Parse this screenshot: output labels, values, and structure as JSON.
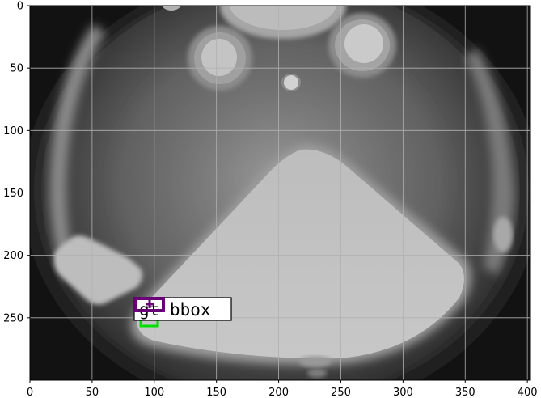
{
  "figure": {
    "x_ticks": [
      "0",
      "50",
      "100",
      "150",
      "200",
      "250",
      "300",
      "350",
      "400"
    ],
    "y_ticks": [
      "0",
      "50",
      "100",
      "150",
      "200",
      "250"
    ],
    "annotation_text": "gt bbox",
    "annotation_text_color": "#000000",
    "gt_box_color": "#00e000",
    "pred_box_color": "#6a0078",
    "grid_color": "#b0b0b0",
    "grid": true
  },
  "chart_data": {
    "type": "image",
    "x_axis_range": [
      0,
      400
    ],
    "y_axis_range": [
      300,
      0
    ],
    "boxes": [
      {
        "label": "gt bbox",
        "color": "#00e000",
        "x_range": [
          88,
          102
        ],
        "y_range": [
          250,
          257
        ]
      },
      {
        "color": "#6a0078",
        "x_range": [
          84,
          107
        ],
        "y_range": [
          236,
          246
        ]
      }
    ]
  }
}
